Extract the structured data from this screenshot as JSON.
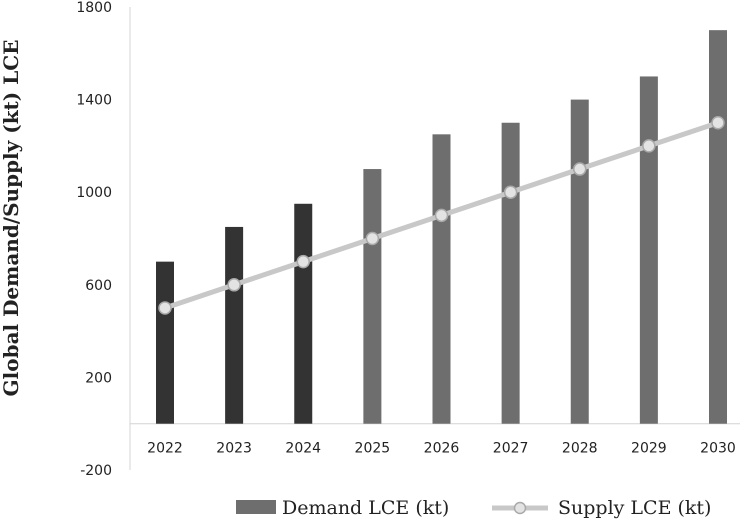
{
  "chart_data": {
    "type": "bar",
    "title": "",
    "xlabel": "",
    "ylabel": "Global Demand/Supply (kt) LCE",
    "ylim": [
      -200,
      1800
    ],
    "yticks": [
      -200,
      200,
      600,
      1000,
      1400,
      1800
    ],
    "grid": false,
    "legend_position": "bottom",
    "categories": [
      "2022",
      "2023",
      "2024",
      "2025",
      "2026",
      "2027",
      "2028",
      "2029",
      "2030"
    ],
    "series": [
      {
        "name": "Demand LCE (kt)",
        "type": "bar",
        "values": [
          700,
          850,
          950,
          1100,
          1250,
          1300,
          1400,
          1500,
          1700
        ],
        "colors": [
          "#333333",
          "#333333",
          "#333333",
          "#6e6e6e",
          "#6e6e6e",
          "#6e6e6e",
          "#6e6e6e",
          "#6e6e6e",
          "#6e6e6e"
        ]
      },
      {
        "name": "Supply LCE (kt)",
        "type": "line",
        "values": [
          500,
          600,
          700,
          800,
          900,
          1000,
          1100,
          1200,
          1300
        ],
        "color": "#c8c8c8"
      }
    ]
  }
}
